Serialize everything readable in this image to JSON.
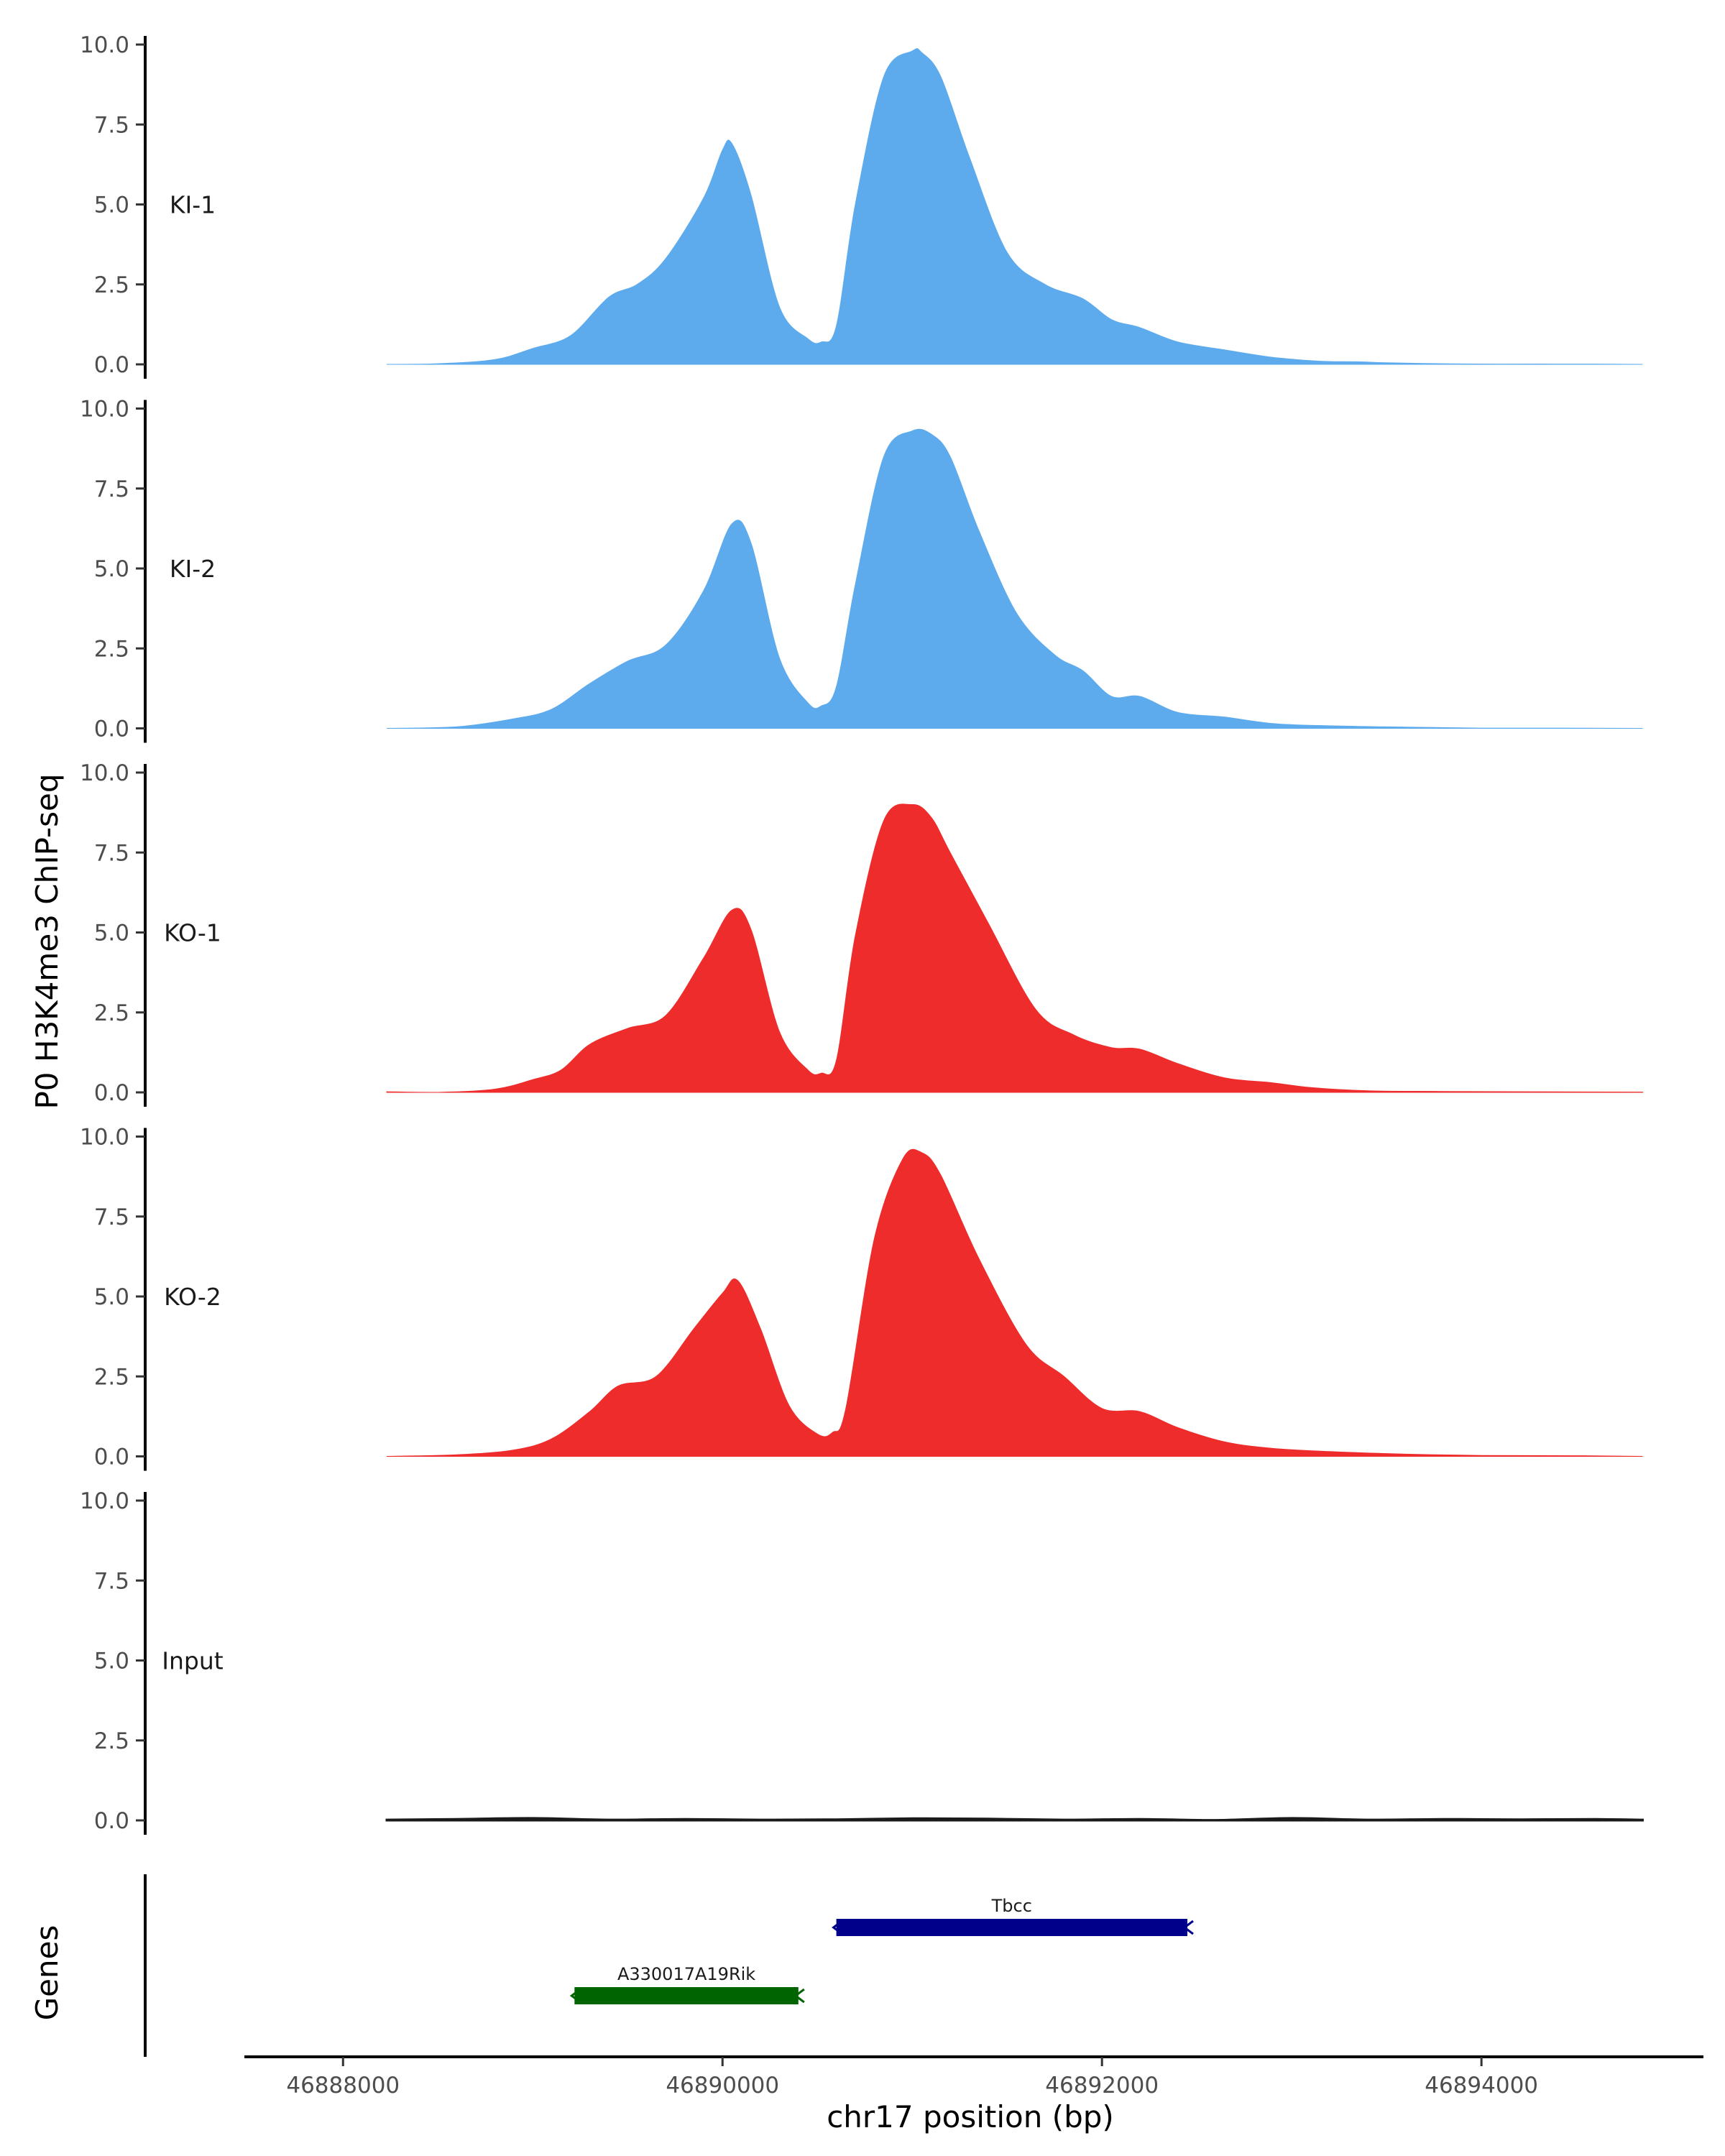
{
  "chart_data": {
    "type": "area",
    "title": "",
    "ylabel": "P0 H3K4me3 ChIP-seq",
    "xlabel": "chr17 position (bp)",
    "xlim": [
      46887480,
      46895170
    ],
    "ylim": [
      0,
      10
    ],
    "yticks": [
      "0.0",
      "2.5",
      "5.0",
      "7.5",
      "10.0"
    ],
    "xticks": [
      {
        "value": 46888000,
        "label": "46888000"
      },
      {
        "value": 46890000,
        "label": "46890000"
      },
      {
        "value": 46892000,
        "label": "46892000"
      },
      {
        "value": 46894000,
        "label": "46894000"
      }
    ],
    "tracks": [
      {
        "name": "KI-1",
        "color": "#5dabed",
        "x": [
          46888230,
          46888500,
          46888800,
          46889000,
          46889200,
          46889400,
          46889550,
          46889700,
          46889900,
          46890000,
          46890050,
          46890150,
          46890300,
          46890450,
          46890520,
          46890600,
          46890700,
          46890850,
          46891000,
          46891050,
          46891150,
          46891300,
          46891500,
          46891700,
          46891900,
          46892050,
          46892200,
          46892400,
          46892650,
          46892900,
          46893150,
          46893350,
          46893500,
          46893800,
          46894100,
          46894500,
          46894850
        ],
        "y": [
          0,
          0.02,
          0.15,
          0.5,
          0.9,
          2.1,
          2.5,
          3.3,
          5.2,
          6.7,
          6.9,
          5.3,
          1.8,
          0.8,
          0.7,
          1.2,
          5.0,
          9.0,
          9.8,
          9.75,
          9.0,
          6.5,
          3.5,
          2.5,
          2.05,
          1.4,
          1.15,
          0.7,
          0.45,
          0.22,
          0.1,
          0.08,
          0.05,
          0.02,
          0.01,
          0.01,
          0
        ]
      },
      {
        "name": "KI-2",
        "color": "#5dabed",
        "x": [
          46888230,
          46888600,
          46888900,
          46889100,
          46889300,
          46889500,
          46889700,
          46889900,
          46890050,
          46890150,
          46890300,
          46890450,
          46890520,
          46890600,
          46890700,
          46890850,
          46891000,
          46891100,
          46891200,
          46891350,
          46891550,
          46891750,
          46891900,
          46892050,
          46892200,
          46892400,
          46892650,
          46892900,
          46893200,
          46893600,
          46894000,
          46894400,
          46894850
        ],
        "y": [
          0,
          0.05,
          0.3,
          0.6,
          1.4,
          2.1,
          2.6,
          4.3,
          6.4,
          5.8,
          2.2,
          0.8,
          0.7,
          1.3,
          4.5,
          8.5,
          9.3,
          9.2,
          8.5,
          6.2,
          3.6,
          2.3,
          1.8,
          1.0,
          1.0,
          0.5,
          0.35,
          0.15,
          0.08,
          0.04,
          0.01,
          0.01,
          0
        ]
      },
      {
        "name": "KO-1",
        "color": "#ee2c2c",
        "x": [
          46888230,
          46888500,
          46888800,
          46889000,
          46889150,
          46889300,
          46889500,
          46889700,
          46889900,
          46890050,
          46890150,
          46890300,
          46890450,
          46890520,
          46890600,
          46890700,
          46890850,
          46891000,
          46891100,
          46891200,
          46891400,
          46891650,
          46891850,
          46892050,
          46892200,
          46892400,
          46892650,
          46892900,
          46893100,
          46893400,
          46893800,
          46894200,
          46894850
        ],
        "y": [
          0.02,
          0,
          0.1,
          0.4,
          0.7,
          1.5,
          2.0,
          2.4,
          4.2,
          5.7,
          5.1,
          1.9,
          0.7,
          0.6,
          1.0,
          4.9,
          8.5,
          9.0,
          8.6,
          7.5,
          5.3,
          2.6,
          1.8,
          1.4,
          1.35,
          0.9,
          0.45,
          0.3,
          0.15,
          0.05,
          0.03,
          0.02,
          0.01
        ]
      },
      {
        "name": "KO-2",
        "color": "#ee2c2c",
        "x": [
          46888230,
          46888600,
          46888900,
          46889100,
          46889300,
          46889450,
          46889650,
          46889850,
          46890000,
          46890080,
          46890200,
          46890350,
          46890500,
          46890580,
          46890650,
          46890800,
          46890950,
          46891050,
          46891150,
          46891350,
          46891600,
          46891800,
          46892000,
          46892200,
          46892400,
          46892650,
          46892900,
          46893200,
          46893600,
          46894000,
          46894500,
          46894850
        ],
        "y": [
          0,
          0.05,
          0.2,
          0.55,
          1.4,
          2.2,
          2.5,
          4.0,
          5.1,
          5.5,
          4.0,
          1.6,
          0.7,
          0.75,
          1.5,
          6.8,
          9.3,
          9.5,
          8.8,
          6.2,
          3.5,
          2.5,
          1.5,
          1.4,
          0.9,
          0.45,
          0.25,
          0.15,
          0.07,
          0.03,
          0.02,
          0
        ]
      },
      {
        "name": "Input",
        "color": "#1a1a1a",
        "x": [
          46888230,
          46888600,
          46889000,
          46889400,
          46889800,
          46890200,
          46890600,
          46891000,
          46891400,
          46891800,
          46892200,
          46892600,
          46893000,
          46893400,
          46893800,
          46894200,
          46894600,
          46894850
        ],
        "y": [
          0.02,
          0.04,
          0.07,
          0.02,
          0.04,
          0.02,
          0.03,
          0.06,
          0.05,
          0.02,
          0.04,
          0.01,
          0.07,
          0.02,
          0.04,
          0.03,
          0.04,
          0.02
        ]
      }
    ],
    "genes_label": "Genes",
    "genes": [
      {
        "name": "Tbcc",
        "start": 46890600,
        "end": 46892450,
        "strand": "-",
        "color": "#00008b",
        "row": 1
      },
      {
        "name": "A330017A19Rik",
        "start": 46889220,
        "end": 46890400,
        "strand": "-",
        "color": "#006400",
        "row": 2
      }
    ]
  }
}
